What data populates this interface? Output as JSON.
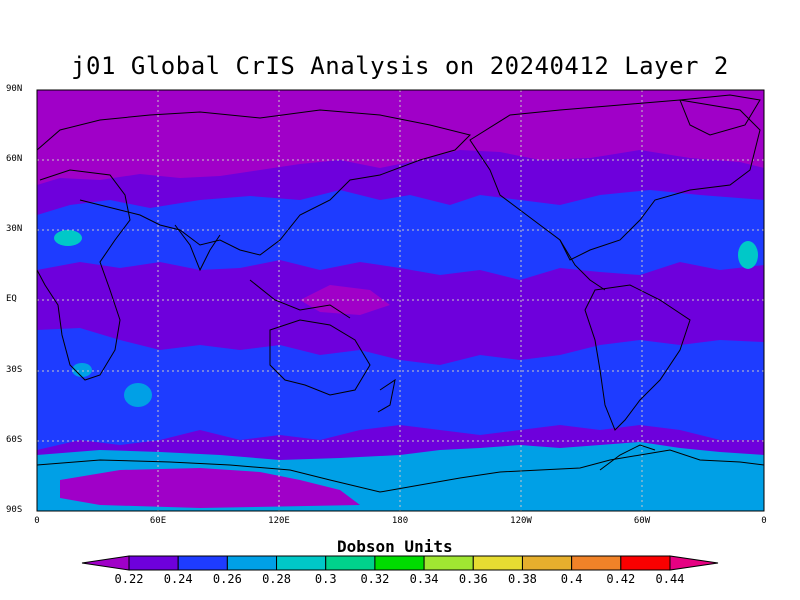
{
  "title": "j01 Global CrIS Analysis on 20240412 Layer 2",
  "y_ticks": [
    "90N",
    "60N",
    "30N",
    "EQ",
    "30S",
    "60S",
    "90S"
  ],
  "x_ticks": [
    "0",
    "60E",
    "120E",
    "180",
    "120W",
    "60W",
    "0"
  ],
  "colorbar": {
    "title": "Dobson Units",
    "labels": [
      "0.22",
      "0.24",
      "0.26",
      "0.28",
      "0.3",
      "0.32",
      "0.34",
      "0.36",
      "0.38",
      "0.4",
      "0.42",
      "0.44"
    ],
    "colors": [
      "#a000c8",
      "#6e00dc",
      "#1e3cff",
      "#00a0e6",
      "#00c8c8",
      "#00d28c",
      "#00dc00",
      "#a0e632",
      "#e6dc32",
      "#e6af2d",
      "#f08228",
      "#fa0000",
      "#e60082"
    ]
  },
  "palette": {
    "lt022": "#a000c8",
    "b022_024": "#6e00dc",
    "b024_026": "#1e3cff",
    "b026_028": "#00a0e6",
    "b028_030": "#00c8c8",
    "coastline": "#000000",
    "grid": "#c8c8c8"
  }
}
